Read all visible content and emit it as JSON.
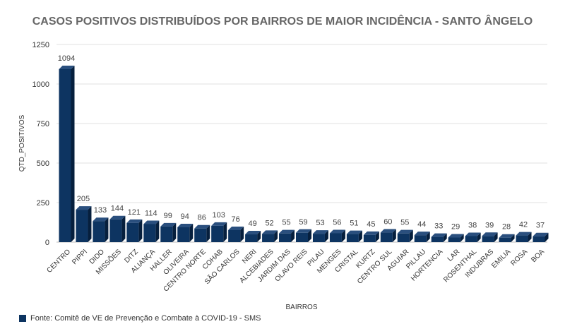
{
  "chart_data": {
    "type": "bar",
    "title": "CASOS POSITIVOS DISTRIBUÍDOS POR BAIRROS DE MAIOR INCIDÊNCIA - SANTO ÂNGELO",
    "xlabel": "BAIRROS",
    "ylabel": "QTD_POSITIVOS",
    "ylim": [
      0,
      1250
    ],
    "yticks": [
      0,
      250,
      500,
      750,
      1000,
      1250
    ],
    "grid": true,
    "legend_position": "bottom-left",
    "categories": [
      "CENTRO",
      "PIPPI",
      "DIDO",
      "MISSÕES",
      "DITZ",
      "ALIANÇA",
      "HALLER",
      "OLIVEIRA",
      "CENTRO NORTE",
      "COHAB",
      "SÃO CARLOS",
      "NERI",
      "ALCEBIADES",
      "JARDIM DAS",
      "OLAVO REIS",
      "PILAU",
      "MENGES",
      "CRISTAL",
      "KURTZ",
      "CENTRO SUL",
      "AGUIAR",
      "PILLAU",
      "HORTENCIA",
      "LAR",
      "ROSENTHAL",
      "INDUBRAS",
      "EMILIA",
      "ROSA",
      "BOA"
    ],
    "series": [
      {
        "name": "Fonte: Comitê de VE de Prevenção e Combate à COVID-19 - SMS",
        "color": "#0d3461",
        "values": [
          1094,
          205,
          133,
          144,
          121,
          114,
          99,
          94,
          86,
          103,
          76,
          49,
          52,
          55,
          59,
          53,
          56,
          51,
          45,
          60,
          55,
          44,
          33,
          29,
          38,
          39,
          28,
          42,
          37
        ]
      }
    ]
  }
}
